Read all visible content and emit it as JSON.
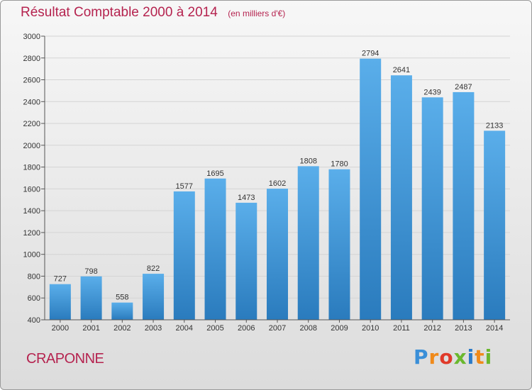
{
  "header": {
    "title": "Résultat Comptable 2000 à 2014",
    "unit": "(en milliers d'€)"
  },
  "footer": {
    "commune": "CRAPONNE",
    "logo_text": "Proxiti"
  },
  "colors": {
    "bar_top": "#5aaeea",
    "bar_bottom": "#2a7bbd",
    "title": "#b5234f",
    "grid": "#d4d4d4"
  },
  "chart_data": {
    "type": "bar",
    "title": "Résultat Comptable 2000 à 2014",
    "xlabel": "",
    "ylabel": "",
    "categories": [
      "2000",
      "2001",
      "2002",
      "2003",
      "2004",
      "2005",
      "2006",
      "2007",
      "2008",
      "2009",
      "2010",
      "2011",
      "2012",
      "2013",
      "2014"
    ],
    "values": [
      727,
      798,
      558,
      822,
      1577,
      1695,
      1473,
      1602,
      1808,
      1780,
      2794,
      2641,
      2439,
      2487,
      2133
    ],
    "ylim": [
      400,
      3000
    ],
    "yticks": [
      400,
      600,
      800,
      1000,
      1200,
      1400,
      1600,
      1800,
      2000,
      2200,
      2400,
      2600,
      2800,
      3000
    ],
    "grid": true,
    "data_labels": true
  }
}
